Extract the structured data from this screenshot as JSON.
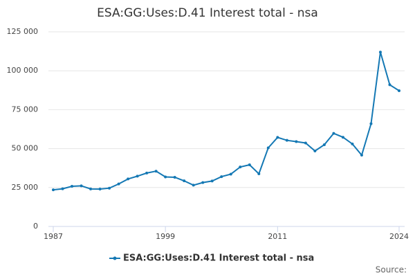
{
  "chart_data": {
    "type": "line",
    "title": "ESA:GG:Uses:D.41 Interest total - nsa",
    "x": [
      1987,
      1988,
      1989,
      1990,
      1991,
      1992,
      1993,
      1994,
      1995,
      1996,
      1997,
      1998,
      1999,
      2000,
      2001,
      2002,
      2003,
      2004,
      2005,
      2006,
      2007,
      2008,
      2009,
      2010,
      2011,
      2012,
      2013,
      2014,
      2015,
      2016,
      2017,
      2018,
      2019,
      2020,
      2021,
      2022,
      2023,
      2024
    ],
    "series": [
      {
        "name": "ESA:GG:Uses:D.41 Interest total - nsa",
        "color": "#1478b4",
        "values": [
          23500,
          24200,
          25800,
          26100,
          24100,
          24000,
          24600,
          27300,
          30500,
          32300,
          34300,
          35500,
          31800,
          31600,
          29300,
          26500,
          28200,
          29200,
          32000,
          33600,
          38200,
          39600,
          33800,
          50500,
          57200,
          55300,
          54500,
          53600,
          48500,
          52500,
          59800,
          57300,
          53000,
          45800,
          66000,
          112000,
          91000,
          87200
        ]
      }
    ],
    "xlim": [
      1987,
      2024
    ],
    "xticks": [
      1987,
      1999,
      2011,
      2024
    ],
    "ylim": [
      0,
      125000
    ],
    "yticks": [
      0,
      {
        "value": 25000,
        "label": "25 000"
      },
      {
        "value": 50000,
        "label": "50 000"
      },
      {
        "value": 75000,
        "label": "75 000"
      },
      {
        "value": 100000,
        "label": "100 000"
      },
      {
        "value": 125000,
        "label": "125 000"
      }
    ],
    "grid": true,
    "source": "Source:"
  }
}
